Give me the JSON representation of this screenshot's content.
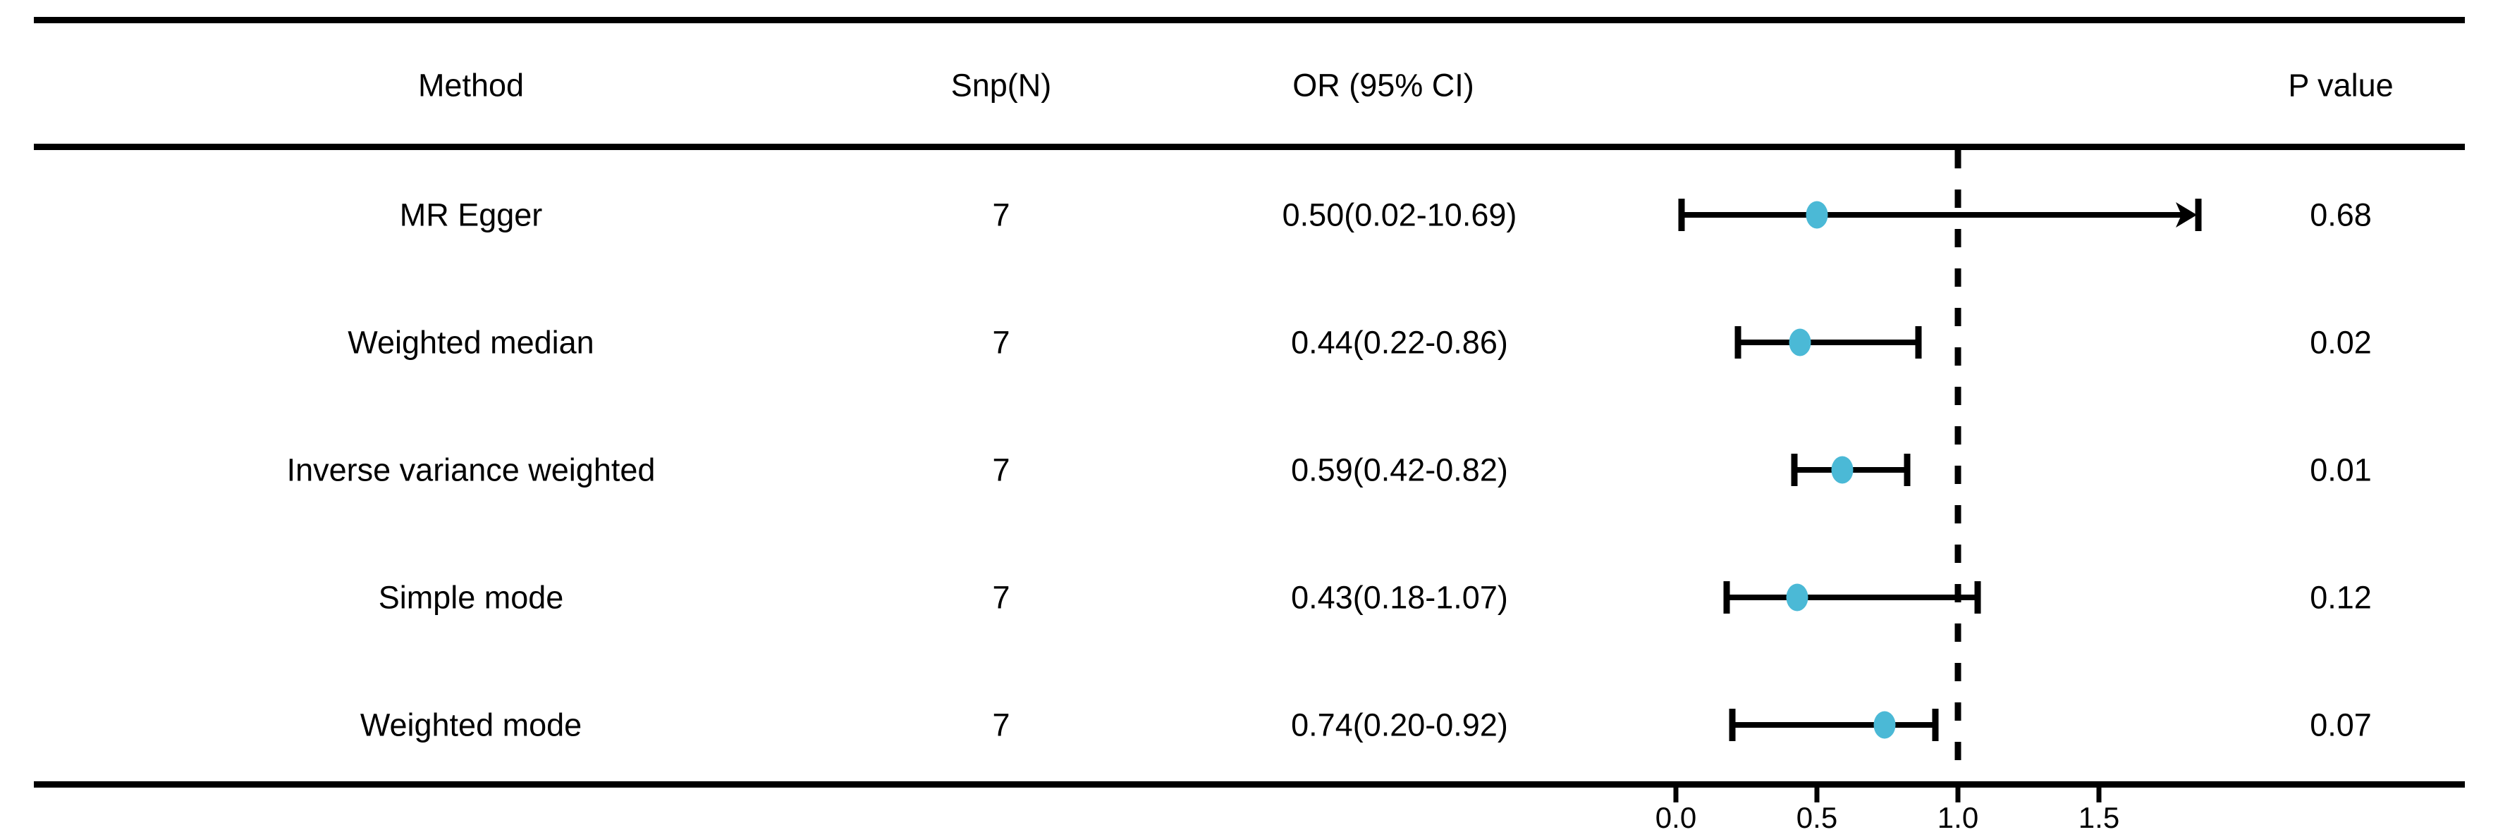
{
  "figure": {
    "headers": {
      "method": "Method",
      "snp": "Snp(N)",
      "or": "OR (95% CI)",
      "p": "P value"
    }
  },
  "chart_data": {
    "type": "forest_plot",
    "columns": [
      "Method",
      "Snp(N)",
      "OR (95% CI)",
      "P value"
    ],
    "rows": [
      {
        "method": "MR Egger",
        "snp": "7",
        "or_text": "0.50(0.02-10.69)",
        "or": 0.5,
        "ci_low": 0.02,
        "ci_high": 10.69,
        "ci_high_clipped": true,
        "p_value": "0.68"
      },
      {
        "method": "Weighted median",
        "snp": "7",
        "or_text": "0.44(0.22-0.86)",
        "or": 0.44,
        "ci_low": 0.22,
        "ci_high": 0.86,
        "ci_high_clipped": false,
        "p_value": "0.02"
      },
      {
        "method": "Inverse variance weighted",
        "snp": "7",
        "or_text": "0.59(0.42-0.82)",
        "or": 0.59,
        "ci_low": 0.42,
        "ci_high": 0.82,
        "ci_high_clipped": false,
        "p_value": "0.01"
      },
      {
        "method": "Simple mode",
        "snp": "7",
        "or_text": "0.43(0.18-1.07)",
        "or": 0.43,
        "ci_low": 0.18,
        "ci_high": 1.07,
        "ci_high_clipped": false,
        "p_value": "0.12"
      },
      {
        "method": "Weighted mode",
        "snp": "7",
        "or_text": "0.74(0.20-0.92)",
        "or": 0.74,
        "ci_low": 0.2,
        "ci_high": 0.92,
        "ci_high_clipped": false,
        "p_value": "0.07"
      }
    ],
    "x_axis": {
      "ticks": [
        0.0,
        0.5,
        1.0,
        1.5
      ],
      "tick_labels": [
        "0.0",
        "0.5",
        "1.0",
        "1.5"
      ],
      "reference_line": 1.0,
      "visible_max": 1.84,
      "grid": false
    },
    "marker_color": "#4bb9d6",
    "line_color": "#000000"
  }
}
